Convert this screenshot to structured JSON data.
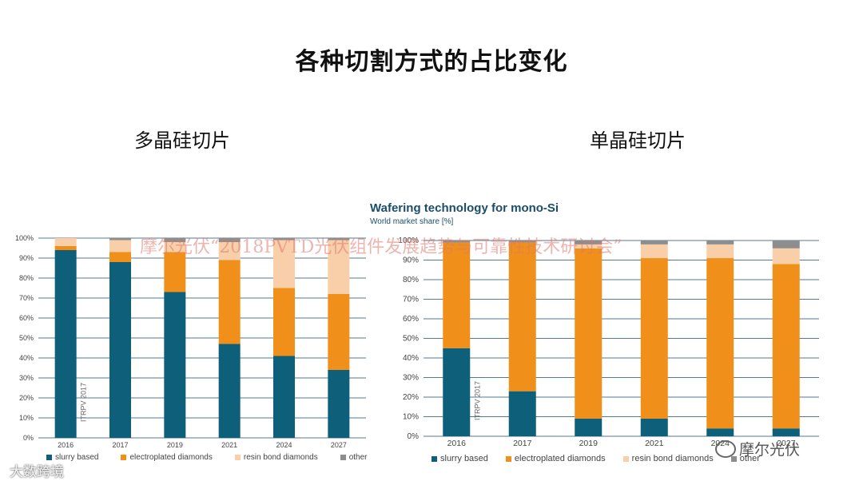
{
  "slide": {
    "title": "各种切割方式的占比变化",
    "left_subtitle": "多晶硅切片",
    "right_subtitle": "单晶硅切片",
    "watermark": "摩尔光伏“2018PVTD光伏组件发展趋势与可靠性技术研讨会”",
    "logo_text": "摩尔光伏",
    "corner_text": "大数跨境"
  },
  "colors": {
    "slurry": "#0d5f7a",
    "electroplated": "#f0901a",
    "resin": "#f8cfa8",
    "other": "#8d8d8d",
    "grid": "#1a4e6a"
  },
  "chart_data": [
    {
      "type": "bar",
      "stacked": true,
      "title": "",
      "ylabel": "",
      "ylim": [
        0,
        100
      ],
      "yticks": [
        "0%",
        "10%",
        "20%",
        "30%",
        "40%",
        "50%",
        "60%",
        "70%",
        "80%",
        "90%",
        "100%"
      ],
      "categories": [
        "2016",
        "2017",
        "2019",
        "2021",
        "2024",
        "2027"
      ],
      "series": [
        {
          "name": "slurry based",
          "values": [
            94,
            88,
            73,
            47,
            41,
            34
          ]
        },
        {
          "name": "electroplated diamonds",
          "values": [
            2,
            5,
            20,
            42,
            34,
            38
          ]
        },
        {
          "name": "resin bond diamonds",
          "values": [
            4,
            6,
            5,
            9,
            24,
            27
          ]
        },
        {
          "name": "other",
          "values": [
            0,
            1,
            2,
            2,
            1,
            1
          ]
        }
      ],
      "annotation": "ITRPV 2017",
      "grid": true,
      "legend_position": "bottom"
    },
    {
      "type": "bar",
      "stacked": true,
      "title": "Wafering technology for mono-Si",
      "subtitle": "World market share [%]",
      "ylim": [
        0,
        100
      ],
      "yticks": [
        "0%",
        "10%",
        "20%",
        "30%",
        "40%",
        "50%",
        "60%",
        "70%",
        "80%",
        "90%",
        "100%"
      ],
      "categories": [
        "2016",
        "2017",
        "2019",
        "2021",
        "2024",
        "2027"
      ],
      "series": [
        {
          "name": "slurry based",
          "values": [
            45,
            23,
            9,
            9,
            4,
            4
          ]
        },
        {
          "name": "electroplated diamonds",
          "values": [
            54,
            76,
            87,
            82,
            87,
            84
          ]
        },
        {
          "name": "resin bond diamonds",
          "values": [
            0,
            0,
            2,
            7,
            7,
            8
          ]
        },
        {
          "name": "other",
          "values": [
            1,
            1,
            2,
            2,
            2,
            4
          ]
        }
      ],
      "annotation": "ITRPV 2017",
      "grid": true,
      "legend_position": "bottom"
    }
  ]
}
